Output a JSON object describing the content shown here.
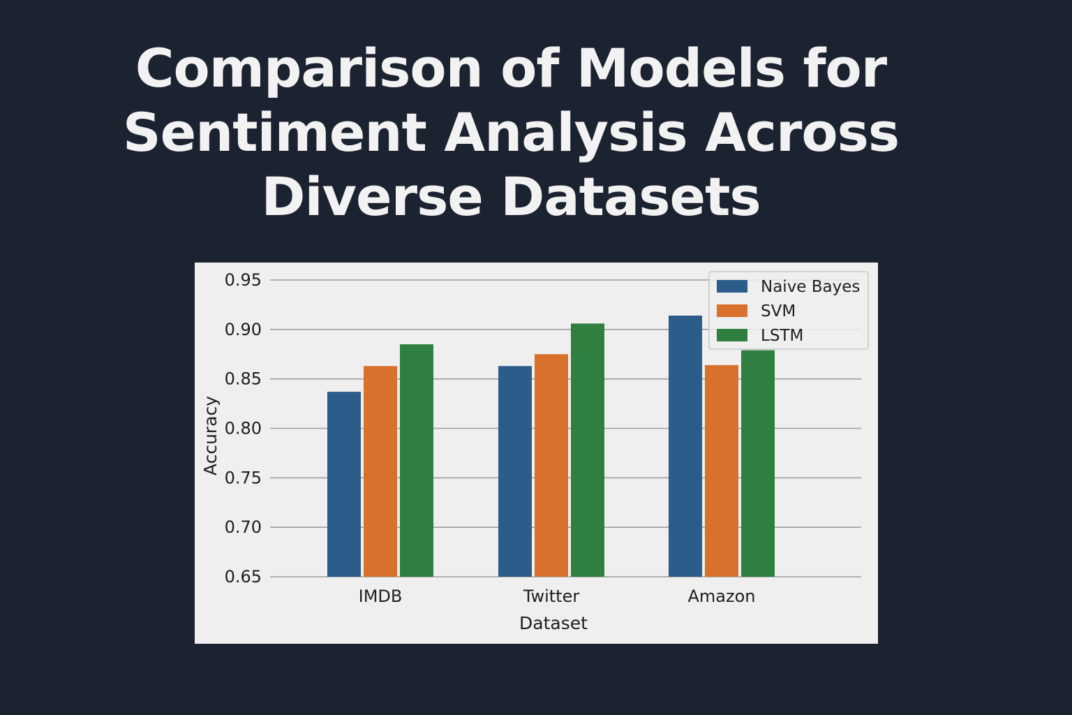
{
  "page": {
    "title_lines": [
      "Comparison of Models for",
      "Sentiment Analysis Across",
      "Diverse Datasets"
    ],
    "background": "#1b2230",
    "panel_background": "#efefef"
  },
  "chart_data": {
    "type": "bar",
    "title": "Comparison of Models for Sentiment Analysis Across Diverse Datasets",
    "xlabel": "Dataset",
    "ylabel": "Accuracy",
    "categories": [
      "IMDB",
      "Twitter",
      "Amazon"
    ],
    "series": [
      {
        "name": "Naive Bayes",
        "color": "#2c5d8a",
        "values": [
          0.837,
          0.863,
          0.914
        ]
      },
      {
        "name": "SVM",
        "color": "#d9702c",
        "values": [
          0.863,
          0.875,
          0.864
        ]
      },
      {
        "name": "LSTM",
        "color": "#2f8040",
        "values": [
          0.885,
          0.906,
          0.879
        ]
      }
    ],
    "ylim": [
      0.65,
      0.95
    ],
    "yticks": [
      "0.95",
      "0.90",
      "0.85",
      "0.80",
      "0.75",
      "0.70",
      "0.65"
    ],
    "grid": true,
    "legend_position": "top-right"
  }
}
